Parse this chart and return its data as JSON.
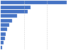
{
  "values": [
    3800,
    1700,
    1550,
    950,
    650,
    500,
    380,
    300,
    230,
    180,
    100
  ],
  "bar_color": "#4472c4",
  "background_color": "#ffffff",
  "figsize": [
    1.0,
    0.71
  ],
  "dpi": 100,
  "xlim": [
    0,
    4000
  ],
  "grid_lines": [
    1333,
    2666
  ],
  "grid_color": "#cccccc",
  "grid_linewidth": 0.4
}
